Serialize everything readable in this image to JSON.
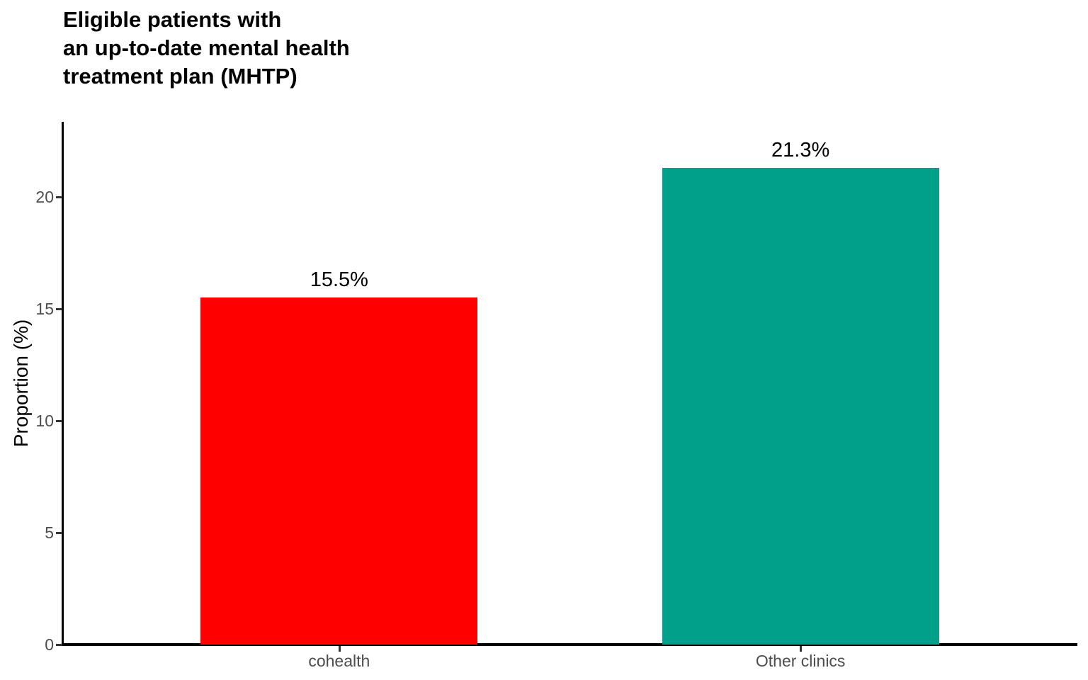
{
  "page": {
    "background": "#FFFFFF"
  },
  "title": {
    "lines": [
      "Eligible patients with",
      "an up-to-date mental health",
      "treatment plan (MHTP)"
    ]
  },
  "chart_data": {
    "type": "bar",
    "title": "Eligible patients with an up-to-date mental health treatment plan (MHTP)",
    "categories": [
      "cohealth",
      "Other clinics"
    ],
    "values": [
      15.5,
      21.3
    ],
    "value_labels": [
      "15.5%",
      "21.3%"
    ],
    "bar_colors": [
      "#FF0000",
      "#00A08A"
    ],
    "xlabel": "",
    "ylabel": "Proportion (%)",
    "ylim": [
      0,
      23.3
    ],
    "yticks": [
      0,
      5,
      10,
      15,
      20
    ],
    "ytick_labels": [
      "0",
      "5",
      "10",
      "15",
      "20"
    ],
    "grid": false,
    "legend": "none",
    "axis_color": "#000000",
    "tick_color": "#333333",
    "tick_label_color": "#4D4D4D",
    "value_label_color": "#000000",
    "title_color": "#000000"
  }
}
